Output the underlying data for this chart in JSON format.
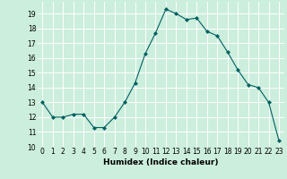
{
  "x": [
    0,
    1,
    2,
    3,
    4,
    5,
    6,
    7,
    8,
    9,
    10,
    11,
    12,
    13,
    14,
    15,
    16,
    17,
    18,
    19,
    20,
    21,
    22,
    23
  ],
  "y": [
    13,
    12,
    12,
    12.2,
    12.2,
    11.3,
    11.3,
    12,
    13,
    14.3,
    16.3,
    17.7,
    19.3,
    19,
    18.6,
    18.7,
    17.8,
    17.5,
    16.4,
    15.2,
    14.2,
    14,
    13,
    10.4
  ],
  "line_color": "#006060",
  "marker": "D",
  "marker_size": 2.0,
  "bg_color": "#cceedd",
  "grid_color": "#ffffff",
  "xlabel": "Humidex (Indice chaleur)",
  "xlim": [
    -0.5,
    23.5
  ],
  "ylim": [
    10,
    19.8
  ],
  "yticks": [
    10,
    11,
    12,
    13,
    14,
    15,
    16,
    17,
    18,
    19
  ],
  "xticks": [
    0,
    1,
    2,
    3,
    4,
    5,
    6,
    7,
    8,
    9,
    10,
    11,
    12,
    13,
    14,
    15,
    16,
    17,
    18,
    19,
    20,
    21,
    22,
    23
  ],
  "tick_fontsize": 5.5,
  "xlabel_fontsize": 6.5
}
